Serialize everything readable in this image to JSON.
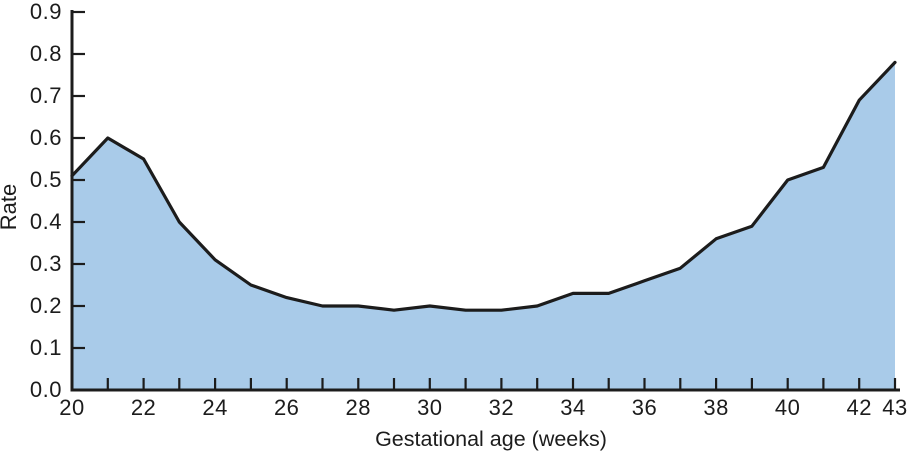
{
  "chart_data": {
    "type": "area",
    "title": "",
    "xlabel": "Gestational age (weeks)",
    "ylabel": "Rate",
    "x": [
      20,
      21,
      22,
      23,
      24,
      25,
      26,
      27,
      28,
      29,
      30,
      31,
      32,
      33,
      34,
      35,
      36,
      37,
      38,
      39,
      40,
      41,
      42,
      43
    ],
    "values": [
      0.51,
      0.6,
      0.55,
      0.4,
      0.31,
      0.25,
      0.22,
      0.2,
      0.2,
      0.19,
      0.2,
      0.19,
      0.19,
      0.2,
      0.23,
      0.23,
      0.26,
      0.29,
      0.36,
      0.39,
      0.5,
      0.53,
      0.69,
      0.78
    ],
    "xlim": [
      20,
      43
    ],
    "ylim": [
      0.0,
      0.9
    ],
    "y_tick_labels": [
      "0.0",
      "0.1",
      "0.2",
      "0.3",
      "0.4",
      "0.5",
      "0.6",
      "0.7",
      "0.8",
      "0.9"
    ],
    "x_tick_labels": [
      "20",
      "22",
      "24",
      "26",
      "28",
      "30",
      "32",
      "34",
      "36",
      "38",
      "40",
      "42",
      "43"
    ],
    "minor_x_tick_every_week": true,
    "grid": false,
    "legend": "none",
    "colors": {
      "fill": "#a9cbe9",
      "line": "#1c1c1c",
      "axis": "#1c1c1c",
      "text": "#1c1c1c",
      "background": "#ffffff"
    }
  }
}
